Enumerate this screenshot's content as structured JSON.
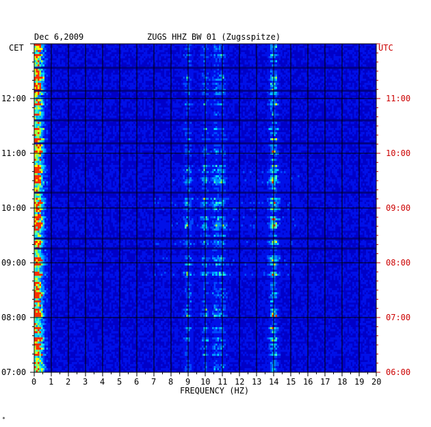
{
  "header": {
    "date": "Dec 6,2009",
    "station": "ZUGS HHZ BW 01 (Zugsspitze)",
    "left_zone": "CET",
    "right_zone": "UTC"
  },
  "footer": {
    "mark": "*"
  },
  "chart_data": {
    "type": "heatmap",
    "title": "ZUGS HHZ BW 01 (Zugsspitze)",
    "date": "Dec 6,2009",
    "xlabel": "FREQUENCY (HZ)",
    "xlim": [
      0,
      20
    ],
    "x_ticks": [
      "0",
      "1",
      "2",
      "3",
      "4",
      "5",
      "6",
      "7",
      "8",
      "9",
      "10",
      "11",
      "12",
      "13",
      "14",
      "15",
      "16",
      "17",
      "18",
      "19",
      "20"
    ],
    "left_axis": {
      "zone": "CET",
      "range": [
        "07:00",
        "13:00"
      ],
      "ticks": [
        "07:00",
        "08:00",
        "09:00",
        "10:00",
        "11:00",
        "12:00"
      ]
    },
    "right_axis": {
      "zone": "UTC",
      "range": [
        "06:00",
        "12:00"
      ],
      "ticks": [
        "06:00",
        "07:00",
        "08:00",
        "09:00",
        "10:00",
        "11:00"
      ]
    },
    "grid": true,
    "colors": {
      "background": "#0000c8",
      "low": "#0018ff",
      "mid": "#00c8ff",
      "high": "#ffff00",
      "peak": "#ff2000",
      "left_tick_text": "#000000",
      "right_tick_text": "#cc0000",
      "grid": "#000000"
    },
    "dominant_bands_hz": [
      0.3,
      9,
      10,
      10.6,
      11,
      13.9,
      14.1
    ]
  }
}
